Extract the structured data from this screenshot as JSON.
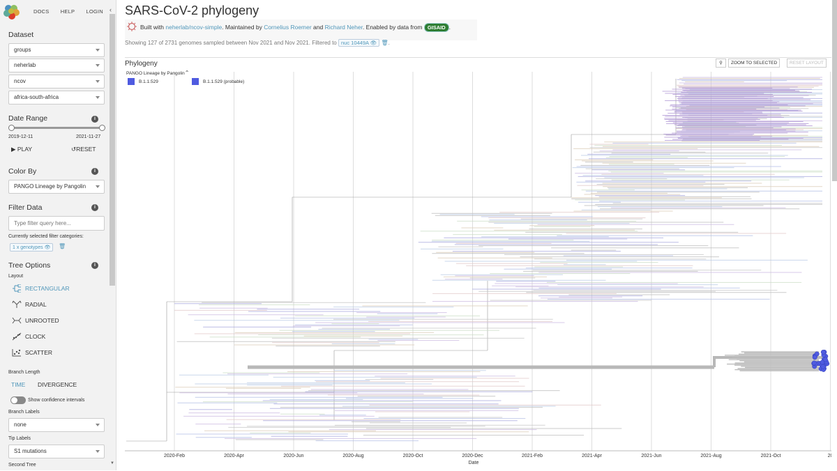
{
  "nav": {
    "links": [
      "DOCS",
      "HELP",
      "LOGIN"
    ],
    "collapse_icon": "chevron-left-icon"
  },
  "sidebar": {
    "dataset": {
      "heading": "Dataset",
      "selects": [
        "groups",
        "neherlab",
        "ncov",
        "africa-south-africa"
      ]
    },
    "date_range": {
      "heading": "Date Range",
      "start": "2019-12-11",
      "end": "2021-11-27",
      "play_label": "PLAY",
      "reset_label": "RESET"
    },
    "color_by": {
      "heading": "Color By",
      "value": "PANGO Lineage by Pangolin"
    },
    "filter_data": {
      "heading": "Filter Data",
      "placeholder": "Type filter query here...",
      "selected_caption": "Currently selected filter categories:",
      "chip_label": "1 x genotypes"
    },
    "tree_options": {
      "heading": "Tree Options",
      "layout_label": "Layout",
      "layouts": [
        "RECTANGULAR",
        "RADIAL",
        "UNROOTED",
        "CLOCK",
        "SCATTER"
      ],
      "selected_layout": "RECTANGULAR",
      "branch_length_label": "Branch Length",
      "branch_length_options": [
        "TIME",
        "DIVERGENCE"
      ],
      "selected_branch_length": "TIME",
      "confidence_label": "Show confidence intervals",
      "branch_labels_label": "Branch Labels",
      "branch_labels_value": "none",
      "tip_labels_label": "Tip Labels",
      "tip_labels_value": "S1 mutations",
      "second_tree_label": "Second Tree"
    }
  },
  "header": {
    "title": "SARS-CoV-2 phylogeny",
    "built_with": "Built with ",
    "repo_link": "neherlab/ncov-simple",
    "maintained_by": ". Maintained by ",
    "maintainer_1": "Cornelius Roemer",
    "and": " and ",
    "maintainer_2": "Richard Neher",
    "enabled_by": ". Enabled by data from ",
    "gisaid": "GISAID",
    "period": ".",
    "showing": "Showing 127 of 2731 genomes sampled between Nov 2021 and Nov 2021. Filtered to ",
    "filter_chip": "nuc 10449A",
    "showing_end": "."
  },
  "phylogeny": {
    "title": "Phylogeny",
    "legend_title": "PANGO Lineage by Pangolin",
    "legend_items": [
      "B.1.1.529",
      "B.1.1.529 (probable)"
    ],
    "legend_color": "#4f5be0",
    "zoom_label": "ZOOM TO SELECTED",
    "reset_layout_label": "RESET LAYOUT"
  },
  "chart_data": {
    "type": "tree",
    "xlabel": "Date",
    "ticks": [
      "2020-Feb",
      "2020-Apr",
      "2020-Jun",
      "2020-Aug",
      "2020-Oct",
      "2020-Dec",
      "2021-Feb",
      "2021-Apr",
      "2021-Jun",
      "2021-Aug",
      "2021-Oct",
      "20"
    ],
    "highlight_color": "#4f5be0",
    "dim_color": "#cccccc"
  }
}
